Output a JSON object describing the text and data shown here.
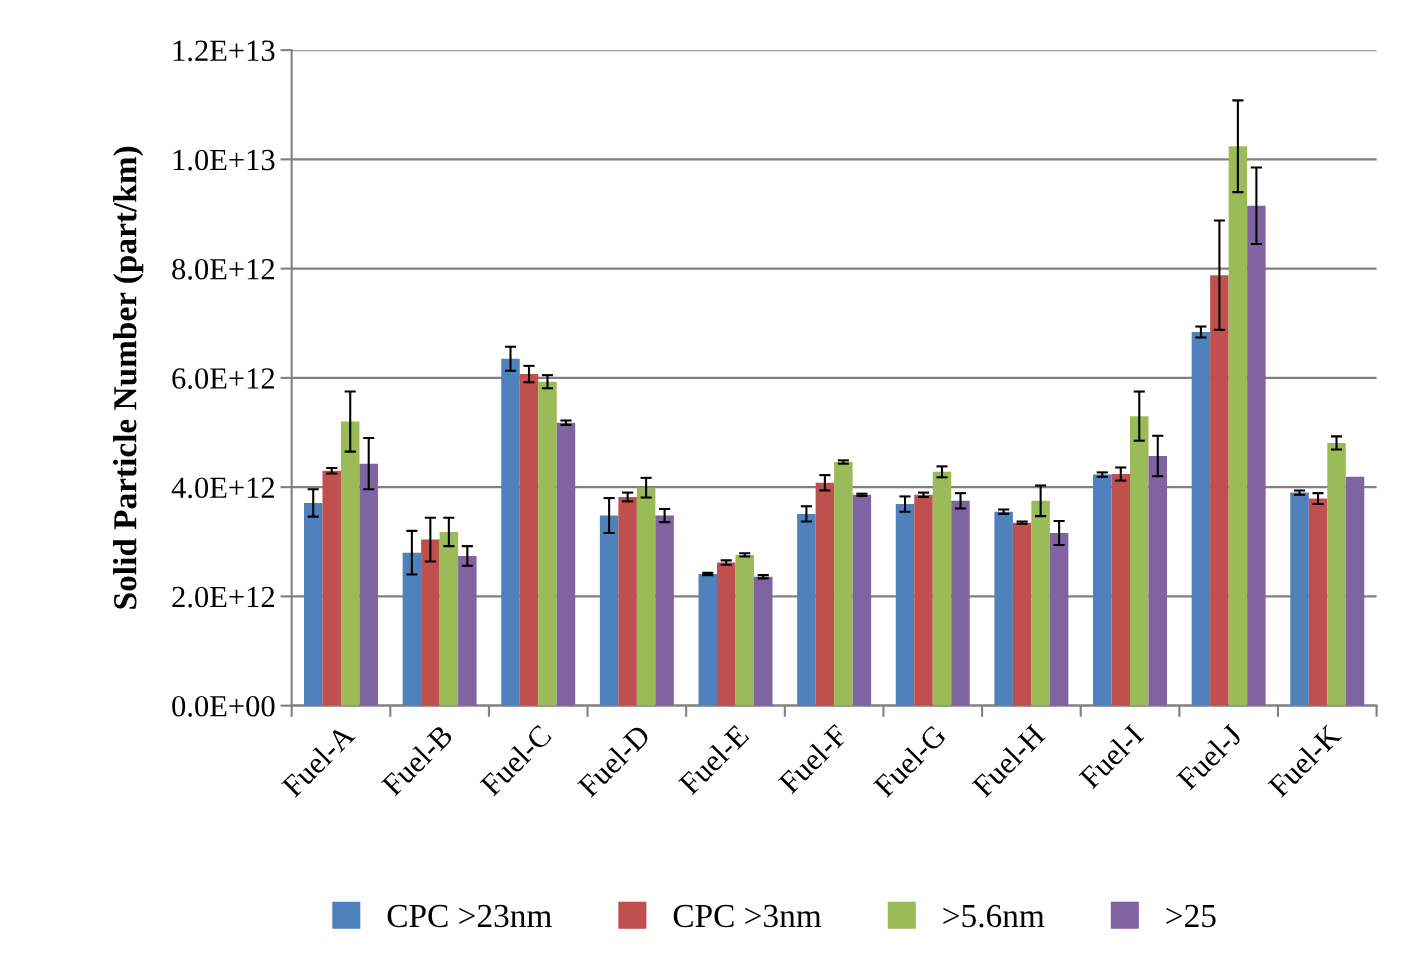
{
  "chart_data": {
    "type": "bar",
    "ylabel": "Solid Particle Number (part/km)",
    "categories": [
      "Fuel-A",
      "Fuel-B",
      "Fuel-C",
      "Fuel-D",
      "Fuel-E",
      "Fuel-F",
      "Fuel-G",
      "Fuel-H",
      "Fuel-I",
      "Fuel-J",
      "Fuel-K"
    ],
    "series": [
      {
        "name": "CPC >23nm",
        "color": "#4f81bd",
        "values": [
          3710000000000.0,
          2800000000000.0,
          6350000000000.0,
          3480000000000.0,
          2410000000000.0,
          3510000000000.0,
          3690000000000.0,
          3550000000000.0,
          4230000000000.0,
          6840000000000.0,
          3900000000000.0
        ],
        "errors": [
          250000000000.0,
          400000000000.0,
          220000000000.0,
          320000000000.0,
          20000000000.0,
          140000000000.0,
          140000000000.0,
          40000000000.0,
          40000000000.0,
          100000000000.0,
          40000000000.0
        ]
      },
      {
        "name": "CPC >3nm",
        "color": "#c0504d",
        "values": [
          4300000000000.0,
          3040000000000.0,
          6070000000000.0,
          3820000000000.0,
          2620000000000.0,
          4080000000000.0,
          3860000000000.0,
          3350000000000.0,
          4240000000000.0,
          7880000000000.0,
          3790000000000.0
        ],
        "errors": [
          50000000000.0,
          400000000000.0,
          150000000000.0,
          80000000000.0,
          40000000000.0,
          140000000000.0,
          40000000000.0,
          20000000000.0,
          120000000000.0,
          1000000000000.0,
          100000000000.0
        ]
      },
      {
        "name": ">5.6nm",
        "color": "#9bbb59",
        "values": [
          5200000000000.0,
          3180000000000.0,
          5930000000000.0,
          3990000000000.0,
          2760000000000.0,
          4460000000000.0,
          4280000000000.0,
          3750000000000.0,
          5300000000000.0,
          10240000000000.0,
          4810000000000.0
        ],
        "errors": [
          550000000000.0,
          260000000000.0,
          120000000000.0,
          180000000000.0,
          30000000000.0,
          30000000000.0,
          100000000000.0,
          280000000000.0,
          450000000000.0,
          840000000000.0,
          120000000000.0
        ]
      },
      {
        "name": ">25",
        "color": "#8064a2",
        "values": [
          4430000000000.0,
          2740000000000.0,
          5180000000000.0,
          3480000000000.0,
          2360000000000.0,
          3860000000000.0,
          3750000000000.0,
          3160000000000.0,
          4570000000000.0,
          9150000000000.0,
          4190000000000.0
        ],
        "errors": [
          470000000000.0,
          180000000000.0,
          40000000000.0,
          120000000000.0,
          30000000000.0,
          20000000000.0,
          140000000000.0,
          220000000000.0,
          370000000000.0,
          700000000000.0,
          null
        ]
      }
    ],
    "ylim": [
      0,
      12000000000000.0
    ],
    "yticks": [
      {
        "value": 0,
        "label": "0.0E+00"
      },
      {
        "value": 2000000000000.0,
        "label": "2.0E+12"
      },
      {
        "value": 4000000000000.0,
        "label": "4.0E+12"
      },
      {
        "value": 6000000000000.0,
        "label": "6.0E+12"
      },
      {
        "value": 8000000000000.0,
        "label": "8.0E+12"
      },
      {
        "value": 10000000000000.0,
        "label": "1.0E+13"
      },
      {
        "value": 12000000000000.0,
        "label": "1.2E+13"
      }
    ],
    "grid": "y",
    "legend": "bottom"
  }
}
